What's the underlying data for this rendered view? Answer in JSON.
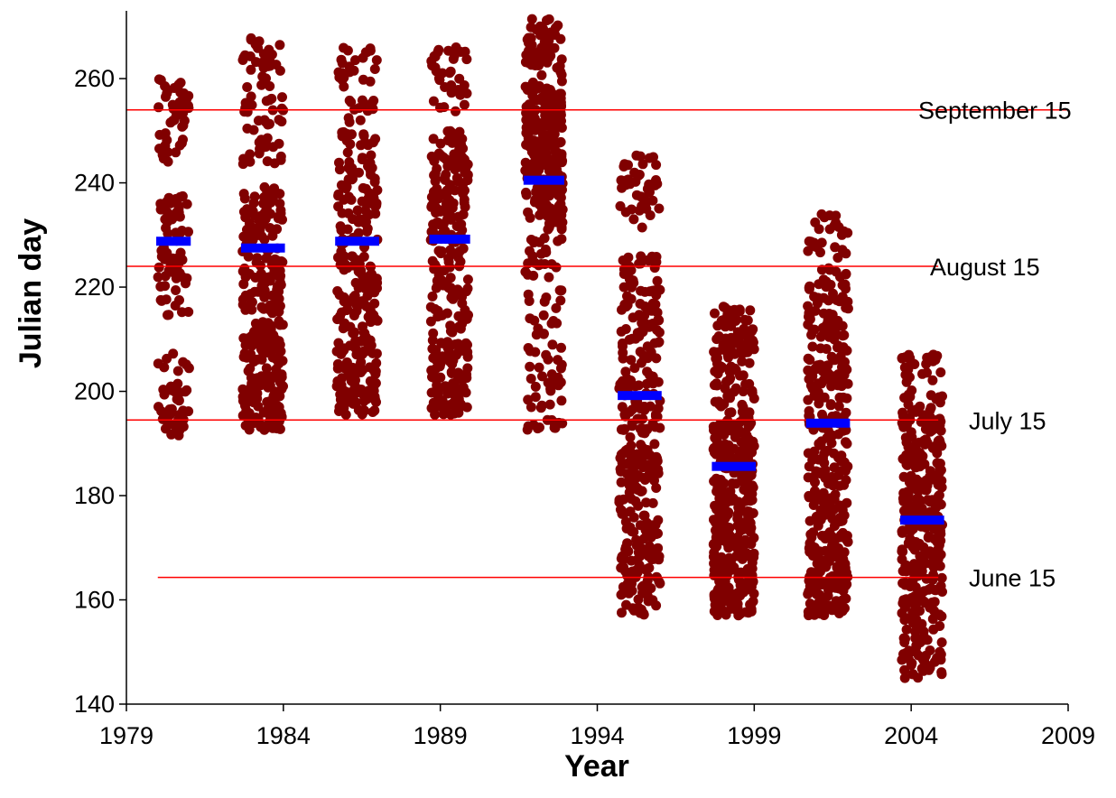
{
  "chart_data": {
    "type": "scatter",
    "title": "",
    "xlabel": "Year",
    "ylabel": "Julian day",
    "xlim": [
      1979,
      2009
    ],
    "ylim": [
      140,
      273
    ],
    "x_ticks": [
      1979,
      1984,
      1989,
      1994,
      1999,
      2004,
      2009
    ],
    "y_ticks": [
      140,
      160,
      180,
      200,
      220,
      240,
      260
    ],
    "grid": false,
    "colors": {
      "points": "#800000",
      "mean_bars": "#0000ff",
      "reference_lines": "#ff0000",
      "axes": "#000000"
    },
    "reference_lines": [
      {
        "label": "September 15",
        "y": 254,
        "x_start": 1979,
        "x_end": 2009
      },
      {
        "label": "August 15",
        "y": 224,
        "x_start": 1979,
        "x_end": 2004
      },
      {
        "label": "July 15",
        "y": 194.5,
        "x_start": 1979,
        "x_end": 2004
      },
      {
        "label": "June 15",
        "y": 164.3,
        "x_start": 1980,
        "x_end": 2004
      }
    ],
    "years": [
      {
        "x_min": 1980.0,
        "x_max": 1981.0,
        "mean": 228.8,
        "clusters": [
          [
            191.5,
            201.5,
            40
          ],
          [
            201.5,
            207.5,
            8
          ],
          [
            214.5,
            237.5,
            70
          ],
          [
            244,
            260,
            45
          ]
        ]
      },
      {
        "x_min": 1982.7,
        "x_max": 1984.0,
        "mean": 227.5,
        "clusters": [
          [
            192.5,
            213.5,
            150
          ],
          [
            215,
            240,
            120
          ],
          [
            243,
            257,
            40
          ],
          [
            258,
            268,
            30
          ]
        ]
      },
      {
        "x_min": 1985.7,
        "x_max": 1987.0,
        "mean": 228.8,
        "clusters": [
          [
            195.5,
            206,
            80
          ],
          [
            207,
            246,
            180
          ],
          [
            247,
            266,
            50
          ]
        ]
      },
      {
        "x_min": 1988.7,
        "x_max": 1989.9,
        "mean": 229.2,
        "clusters": [
          [
            195.5,
            210,
            90
          ],
          [
            211,
            250,
            180
          ],
          [
            253,
            266,
            35
          ]
        ]
      },
      {
        "x_min": 1991.7,
        "x_max": 1992.9,
        "mean": 240.5,
        "clusters": [
          [
            192.5,
            205,
            35
          ],
          [
            205,
            229.5,
            50
          ],
          [
            231,
            257,
            200
          ],
          [
            257,
            271.5,
            70
          ]
        ]
      },
      {
        "x_min": 1994.7,
        "x_max": 1996.0,
        "mean": 199.2,
        "clusters": [
          [
            157,
            190,
            180
          ],
          [
            191,
            226,
            150
          ],
          [
            231,
            245.5,
            40
          ]
        ]
      },
      {
        "x_min": 1997.7,
        "x_max": 1999.0,
        "mean": 185.6,
        "clusters": [
          [
            157,
            178,
            200
          ],
          [
            178,
            200,
            150
          ],
          [
            200,
            216.5,
            90
          ]
        ]
      },
      {
        "x_min": 2000.7,
        "x_max": 2002.0,
        "mean": 193.9,
        "clusters": [
          [
            157,
            173,
            150
          ],
          [
            174,
            215,
            200
          ],
          [
            215,
            234,
            60
          ]
        ]
      },
      {
        "x_min": 2003.7,
        "x_max": 2005.0,
        "mean": 175.3,
        "clusters": [
          [
            145,
            160,
            80
          ],
          [
            160,
            190,
            200
          ],
          [
            190,
            207.5,
            80
          ]
        ]
      }
    ]
  }
}
